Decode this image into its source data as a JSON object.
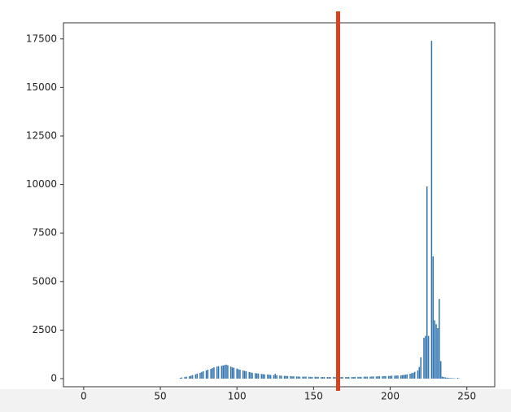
{
  "chart_data": {
    "type": "bar",
    "color": "#3274b0",
    "x": [
      62,
      63,
      64,
      65,
      66,
      67,
      68,
      69,
      70,
      71,
      72,
      73,
      74,
      75,
      76,
      77,
      78,
      79,
      80,
      81,
      82,
      83,
      84,
      85,
      86,
      87,
      88,
      89,
      90,
      91,
      92,
      93,
      94,
      95,
      96,
      97,
      98,
      99,
      100,
      101,
      102,
      103,
      104,
      105,
      106,
      107,
      108,
      109,
      110,
      111,
      112,
      113,
      114,
      115,
      116,
      117,
      118,
      119,
      120,
      121,
      122,
      123,
      124,
      125,
      126,
      127,
      128,
      129,
      130,
      131,
      132,
      133,
      134,
      135,
      136,
      137,
      138,
      139,
      140,
      141,
      142,
      143,
      144,
      145,
      146,
      147,
      148,
      149,
      150,
      151,
      152,
      153,
      154,
      155,
      156,
      157,
      158,
      159,
      160,
      161,
      162,
      163,
      164,
      165,
      166,
      167,
      168,
      169,
      170,
      171,
      172,
      173,
      174,
      175,
      176,
      177,
      178,
      179,
      180,
      181,
      182,
      183,
      184,
      185,
      186,
      187,
      188,
      189,
      190,
      191,
      192,
      193,
      194,
      195,
      196,
      197,
      198,
      199,
      200,
      201,
      202,
      203,
      204,
      205,
      206,
      207,
      208,
      209,
      210,
      211,
      212,
      213,
      214,
      215,
      216,
      217,
      218,
      219,
      220,
      221,
      222,
      223,
      224,
      225,
      226,
      227,
      228,
      229,
      230,
      231,
      232,
      233,
      234,
      235,
      236,
      237,
      238,
      239,
      240,
      241,
      242,
      243,
      244,
      245
    ],
    "values": [
      0,
      40,
      60,
      0,
      80,
      100,
      0,
      120,
      150,
      180,
      0,
      220,
      260,
      0,
      300,
      340,
      380,
      0,
      420,
      460,
      0,
      500,
      540,
      580,
      0,
      620,
      640,
      0,
      660,
      680,
      700,
      720,
      690,
      0,
      620,
      580,
      560,
      0,
      520,
      480,
      460,
      0,
      420,
      400,
      380,
      0,
      340,
      320,
      300,
      0,
      280,
      270,
      260,
      0,
      240,
      230,
      220,
      0,
      210,
      200,
      190,
      0,
      180,
      250,
      170,
      0,
      160,
      150,
      0,
      140,
      140,
      130,
      0,
      130,
      120,
      120,
      0,
      110,
      110,
      100,
      0,
      100,
      100,
      100,
      0,
      90,
      90,
      90,
      0,
      90,
      90,
      90,
      0,
      80,
      80,
      80,
      0,
      80,
      80,
      80,
      0,
      80,
      80,
      80,
      0,
      80,
      80,
      80,
      0,
      80,
      80,
      80,
      0,
      80,
      80,
      90,
      0,
      90,
      90,
      90,
      0,
      100,
      100,
      100,
      0,
      100,
      110,
      110,
      0,
      110,
      120,
      120,
      0,
      120,
      130,
      130,
      0,
      140,
      140,
      150,
      0,
      150,
      160,
      160,
      0,
      170,
      180,
      190,
      200,
      220,
      0,
      250,
      280,
      300,
      350,
      0,
      420,
      600,
      1100,
      0,
      2100,
      2200,
      9900,
      2200,
      0,
      17400,
      6300,
      3000,
      2800,
      2600,
      4100,
      900,
      100,
      80,
      60,
      50,
      40,
      30,
      30,
      20,
      20,
      0,
      40,
      10
    ],
    "xlim": [
      -13.2,
      268.2
    ],
    "ylim": [
      -420,
      18330
    ],
    "xticks": [
      0,
      50,
      100,
      150,
      200,
      250
    ],
    "yticks": [
      0,
      2500,
      5000,
      7500,
      10000,
      12500,
      15000,
      17500
    ],
    "vline": 166,
    "vline_color": "#d5431f"
  }
}
